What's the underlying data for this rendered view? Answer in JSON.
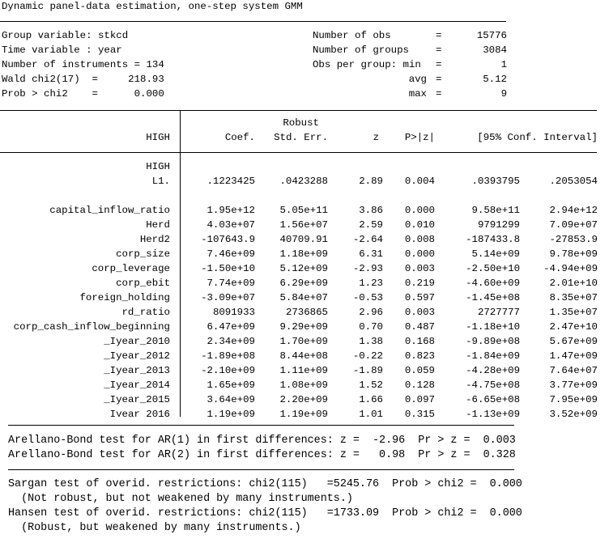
{
  "title": "Dynamic panel-data estimation, one-step system GMM",
  "header": {
    "left": [
      "Group variable: stkcd",
      "Time variable : year",
      "Number of instruments = 134",
      "Wald chi2(17)  =     218.93",
      "Prob > chi2    =      0.000"
    ],
    "right": [
      {
        "label": "Number of obs",
        "sign": "=",
        "value": "15776"
      },
      {
        "label": "Number of groups",
        "sign": "=",
        "value": "3084"
      },
      {
        "label": "Obs per group: min",
        "sign": "=",
        "value": "1"
      },
      {
        "label": "avg",
        "sign": "=",
        "value": "5.12"
      },
      {
        "label": "max",
        "sign": "=",
        "value": "9"
      }
    ]
  },
  "table": {
    "columns": {
      "var": "HIGH",
      "coef": "Coef.",
      "se_top": "Robust",
      "se": "Std. Err.",
      "z": "z",
      "p": "P>|z|",
      "ci": "[95% Conf. Interval]"
    },
    "rows": [
      {
        "name": "HIGH"
      },
      {
        "name": "L1.",
        "values": [
          ".1223425",
          ".0423288",
          "2.89",
          "0.004",
          ".0393795",
          ".2053054"
        ]
      },
      {
        "name": "capital_inflow_ratio",
        "values": [
          "1.95e+12",
          "5.05e+11",
          "3.86",
          "0.000",
          "9.58e+11",
          "2.94e+12"
        ]
      },
      {
        "name": "Herd",
        "values": [
          "4.03e+07",
          "1.56e+07",
          "2.59",
          "0.010",
          "9791299",
          "7.09e+07"
        ]
      },
      {
        "name": "Herd2",
        "values": [
          "-107643.9",
          "40709.91",
          "-2.64",
          "0.008",
          "-187433.8",
          "-27853.9"
        ]
      },
      {
        "name": "corp_size",
        "values": [
          "7.46e+09",
          "1.18e+09",
          "6.31",
          "0.000",
          "5.14e+09",
          "9.78e+09"
        ]
      },
      {
        "name": "corp_leverage",
        "values": [
          "-1.50e+10",
          "5.12e+09",
          "-2.93",
          "0.003",
          "-2.50e+10",
          "-4.94e+09"
        ]
      },
      {
        "name": "corp_ebit",
        "values": [
          "7.74e+09",
          "6.29e+09",
          "1.23",
          "0.219",
          "-4.60e+09",
          "2.01e+10"
        ]
      },
      {
        "name": "foreign_holding",
        "values": [
          "-3.09e+07",
          "5.84e+07",
          "-0.53",
          "0.597",
          "-1.45e+08",
          "8.35e+07"
        ]
      },
      {
        "name": "rd_ratio",
        "values": [
          "8091933",
          "2736865",
          "2.96",
          "0.003",
          "2727777",
          "1.35e+07"
        ]
      },
      {
        "name": "corp_cash_inflow_beginning",
        "values": [
          "6.47e+09",
          "9.29e+09",
          "0.70",
          "0.487",
          "-1.18e+10",
          "2.47e+10"
        ]
      },
      {
        "name": "_Iyear_2010",
        "values": [
          "2.34e+09",
          "1.70e+09",
          "1.38",
          "0.168",
          "-9.89e+08",
          "5.67e+09"
        ]
      },
      {
        "name": "_Iyear_2012",
        "values": [
          "-1.89e+08",
          "8.44e+08",
          "-0.22",
          "0.823",
          "-1.84e+09",
          "1.47e+09"
        ]
      },
      {
        "name": "_Iyear_2013",
        "values": [
          "-2.10e+09",
          "1.11e+09",
          "-1.89",
          "0.059",
          "-4.28e+09",
          "7.64e+07"
        ]
      },
      {
        "name": "_Iyear_2014",
        "values": [
          "1.65e+09",
          "1.08e+09",
          "1.52",
          "0.128",
          "-4.75e+08",
          "3.77e+09"
        ]
      },
      {
        "name": "_Iyear_2015",
        "values": [
          "3.64e+09",
          "2.20e+09",
          "1.66",
          "0.097",
          "-6.65e+08",
          "7.95e+09"
        ]
      },
      {
        "name": "_Iyear_2016",
        "values": [
          "1.19e+09",
          "1.19e+09",
          "1.01",
          "0.315",
          "-1.13e+09",
          "3.52e+09"
        ]
      }
    ]
  },
  "footer": {
    "ar_tests": [
      "Arellano-Bond test for AR(1) in first differences: z =  -2.96  Pr > z =  0.003",
      "Arellano-Bond test for AR(2) in first differences: z =   0.98  Pr > z =  0.328"
    ],
    "overid_tests": [
      "Sargan test of overid. restrictions: chi2(115)   =5245.76  Prob > chi2 =  0.000",
      "  (Not robust, but not weakened by many instruments.)",
      "Hansen test of overid. restrictions: chi2(115)   =1733.09  Prob > chi2 =  0.000",
      "  (Robust, but weakened by many instruments.)"
    ]
  }
}
